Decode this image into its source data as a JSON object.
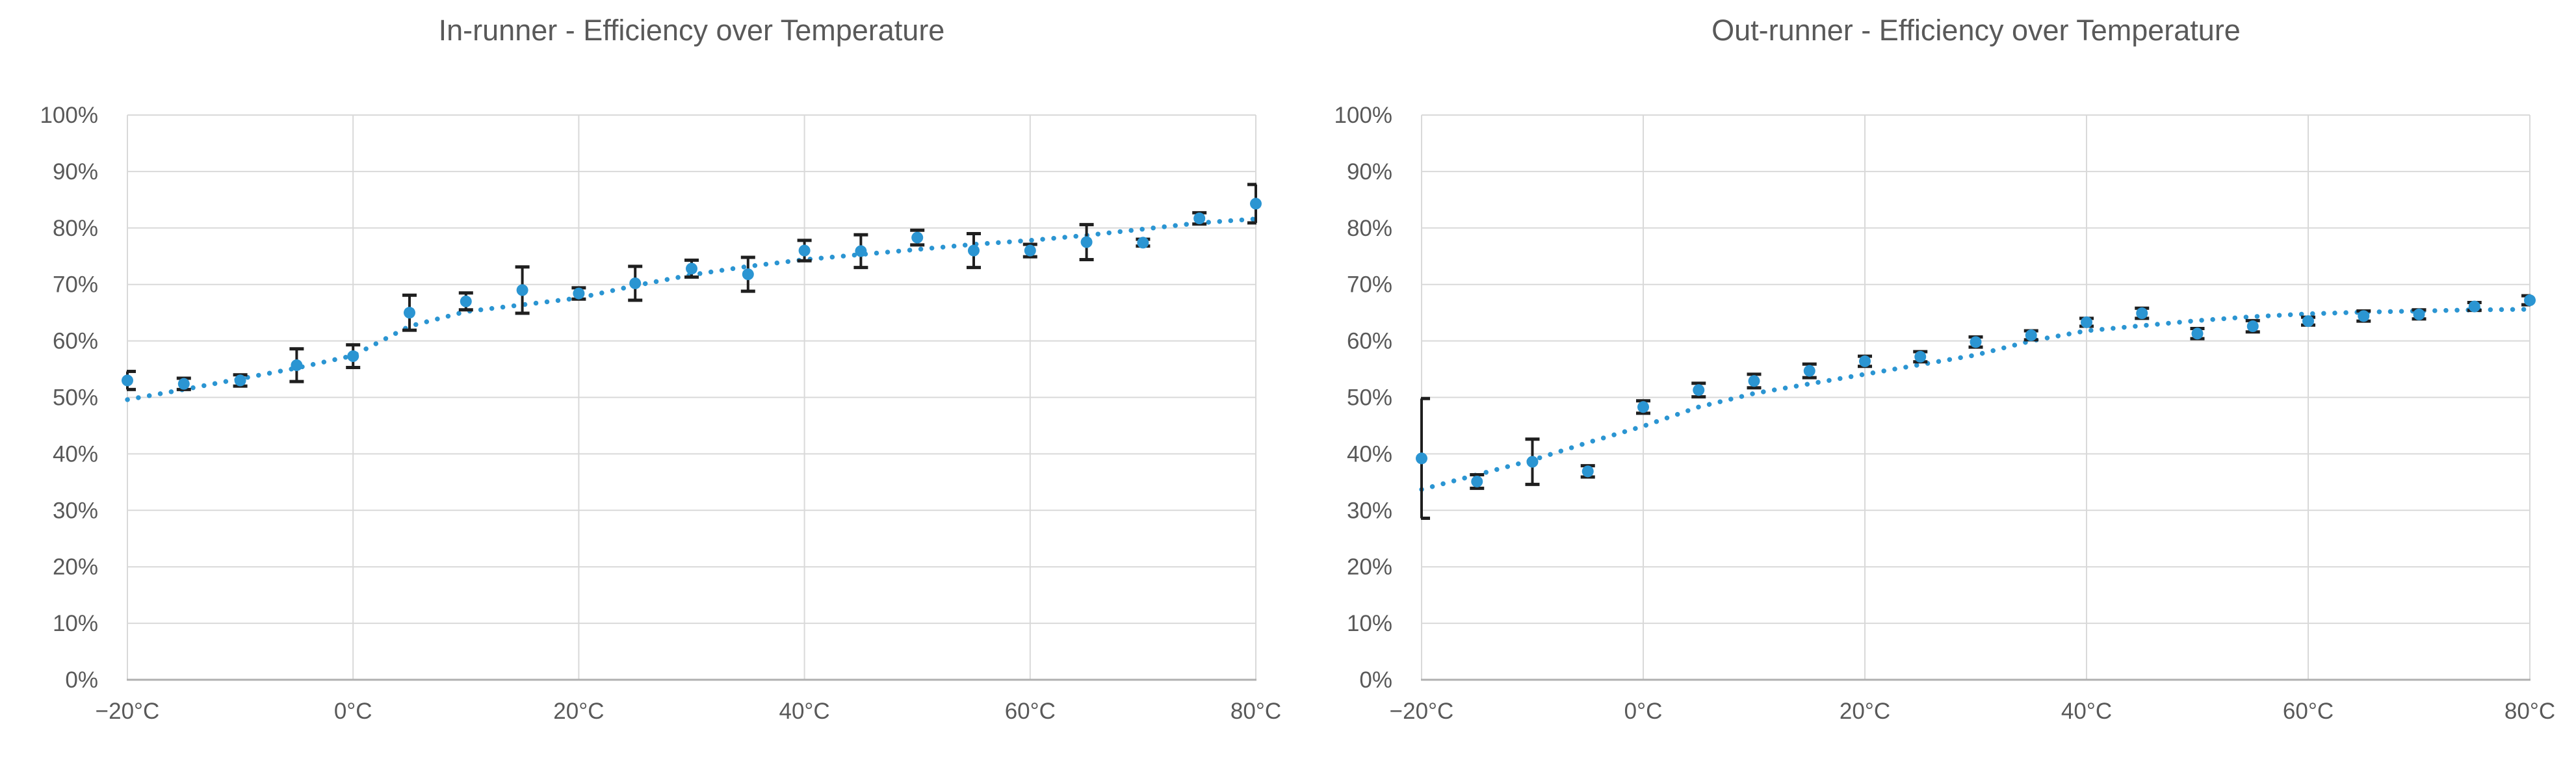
{
  "style": {
    "marker_color": "#2b95d2",
    "trend_color": "#2b95d2",
    "error_bar_color": "#1f1f1f",
    "gridline_color": "#d9d9d9",
    "axis_line_color": "#b0b0b0",
    "text_color": "#595959",
    "background_color": "#ffffff"
  },
  "chart_data": [
    {
      "type": "scatter",
      "title": "In-runner - Efficiency over Temperature",
      "xlabel": "",
      "ylabel": "",
      "x_unit": "°C",
      "y_unit": "%",
      "xlim": [
        -20,
        80
      ],
      "ylim": [
        0,
        100
      ],
      "grid": true,
      "legend": false,
      "x_ticks": [
        -20,
        0,
        20,
        40,
        60,
        80
      ],
      "x_tick_labels": [
        "−20°C",
        "0°C",
        "20°C",
        "40°C",
        "60°C",
        "80°C"
      ],
      "y_ticks": [
        0,
        10,
        20,
        30,
        40,
        50,
        60,
        70,
        80,
        90,
        100
      ],
      "y_tick_labels": [
        "0%",
        "10%",
        "20%",
        "30%",
        "40%",
        "50%",
        "60%",
        "70%",
        "80%",
        "90%",
        "100%"
      ],
      "series": [
        {
          "name": "measured-efficiency",
          "marker": "circle",
          "x": [
            -20,
            -15,
            -10,
            -5,
            0,
            5,
            10,
            15,
            20,
            25,
            30,
            35,
            40,
            45,
            50,
            55,
            60,
            65,
            70,
            75,
            80
          ],
          "y": [
            53,
            52.4,
            53,
            55.7,
            57.3,
            65,
            67,
            69,
            68.4,
            70.2,
            72.8,
            71.8,
            76,
            75.9,
            78.3,
            76,
            76,
            77.5,
            77.4,
            81.7,
            84.3
          ],
          "yerr": [
            1.6,
            1,
            1,
            2.9,
            2,
            3.1,
            1.5,
            4.1,
            1,
            3,
            1.5,
            3,
            1.8,
            2.9,
            1.3,
            3,
            1.1,
            3.1,
            0.6,
            1,
            3.4
          ]
        },
        {
          "name": "trendline",
          "style": "dotted",
          "x": [
            -20,
            -15,
            -10,
            -5,
            0,
            5,
            10,
            15,
            20,
            25,
            30,
            35,
            40,
            45,
            50,
            55,
            60,
            65,
            70,
            75,
            80
          ],
          "y": [
            49.6,
            51.4,
            53.3,
            55.2,
            57.4,
            62.6,
            65.2,
            66.4,
            67.6,
            69.8,
            71.7,
            73.2,
            74.4,
            75.3,
            76.2,
            77.1,
            77.8,
            78.7,
            79.8,
            80.9,
            81.6
          ]
        }
      ]
    },
    {
      "type": "scatter",
      "title": "Out-runner - Efficiency over Temperature",
      "xlabel": "",
      "ylabel": "",
      "x_unit": "°C",
      "y_unit": "%",
      "xlim": [
        -20,
        80
      ],
      "ylim": [
        0,
        100
      ],
      "grid": true,
      "legend": false,
      "x_ticks": [
        -20,
        0,
        20,
        40,
        60,
        80
      ],
      "x_tick_labels": [
        "−20°C",
        "0°C",
        "20°C",
        "40°C",
        "60°C",
        "80°C"
      ],
      "y_ticks": [
        0,
        10,
        20,
        30,
        40,
        50,
        60,
        70,
        80,
        90,
        100
      ],
      "y_tick_labels": [
        "0%",
        "10%",
        "20%",
        "30%",
        "40%",
        "50%",
        "60%",
        "70%",
        "80%",
        "90%",
        "100%"
      ],
      "series": [
        {
          "name": "measured-efficiency",
          "marker": "circle",
          "x": [
            -20,
            -15,
            -10,
            -5,
            0,
            5,
            10,
            15,
            20,
            25,
            30,
            35,
            40,
            45,
            50,
            55,
            60,
            65,
            70,
            75,
            80
          ],
          "y": [
            39.2,
            35.1,
            38.6,
            36.9,
            48.3,
            51.3,
            52.9,
            54.7,
            56.4,
            57.2,
            59.8,
            61,
            63.3,
            64.9,
            61.3,
            62.6,
            63.5,
            64.4,
            64.7,
            66.1,
            67.2
          ],
          "yerr": [
            10.6,
            1.2,
            4,
            1,
            1.1,
            1.2,
            1.2,
            1.2,
            0.9,
            0.9,
            0.9,
            0.8,
            0.7,
            0.9,
            0.9,
            1,
            0.7,
            0.9,
            0.8,
            0.7,
            0.8
          ]
        },
        {
          "name": "trendline",
          "style": "dotted",
          "x": [
            -20,
            -15,
            -10,
            -5,
            0,
            5,
            10,
            15,
            20,
            25,
            30,
            35,
            40,
            45,
            50,
            55,
            60,
            65,
            70,
            75,
            80
          ],
          "y": [
            33.7,
            36.3,
            38.9,
            42,
            44.9,
            48.3,
            50.7,
            52.4,
            54.1,
            55.8,
            57.5,
            60,
            61.8,
            62.7,
            63.6,
            64.3,
            64.8,
            65.1,
            65.3,
            65.5,
            65.6
          ]
        }
      ]
    }
  ]
}
